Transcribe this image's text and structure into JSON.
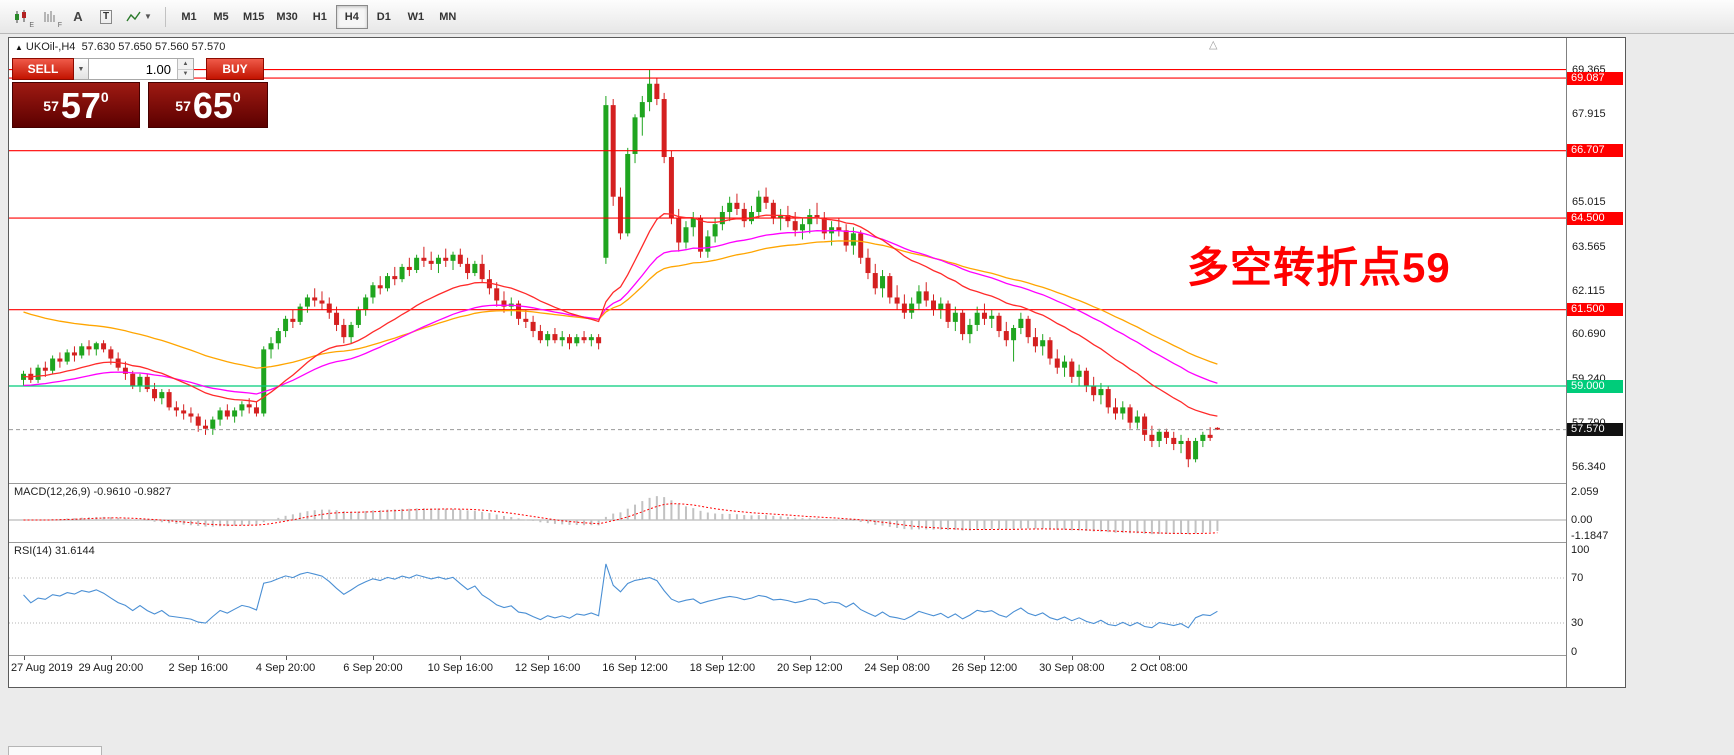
{
  "icons": {
    "dropdown_arrow": "▼",
    "spinner_up": "▲",
    "spinner_down": "▼",
    "symbol_marker": "▲",
    "scroll_marker": "△"
  },
  "toolbar": {
    "icon_a": "A",
    "icon_t": "T",
    "icon_e_sub": "E",
    "icon_f_sub": "F",
    "timeframes": [
      "M1",
      "M5",
      "M15",
      "M30",
      "H1",
      "H4",
      "D1",
      "W1",
      "MN"
    ],
    "active_timeframe": "H4"
  },
  "chart_header": {
    "symbol": "UKOil-,H4",
    "ohlc": "57.630 57.650 57.560 57.570"
  },
  "trade_panel": {
    "sell_label": "SELL",
    "buy_label": "BUY",
    "volume": "1.00",
    "sell_price": {
      "prefix": "57",
      "big": "57",
      "sup": "0"
    },
    "buy_price": {
      "prefix": "57",
      "big": "65",
      "sup": "0"
    }
  },
  "macd_panel": {
    "label": "MACD(12,26,9) -0.9610 -0.9827",
    "axis": [
      {
        "label": "2.059",
        "value": 2.059
      },
      {
        "label": "0.00",
        "value": 0
      },
      {
        "label": "-1.1847",
        "value": -1.1847
      }
    ]
  },
  "rsi_panel": {
    "label": "RSI(14) 31.6144",
    "axis": [
      {
        "label": "100",
        "value": 100
      },
      {
        "label": "70",
        "value": 70
      },
      {
        "label": "30",
        "value": 30
      },
      {
        "label": "0",
        "value": 0
      }
    ]
  },
  "chart_data": {
    "type": "candlestick",
    "symbol": "UKOil-",
    "timeframe": "H4",
    "annotation": {
      "text": "多空转折点59",
      "color": "#ff0000"
    },
    "colors": {
      "up": "#1fa51f",
      "down": "#d42020",
      "macd_hist": "#c2c2c2",
      "macd_signal": "#ff0000",
      "rsi_line": "#4a8fd4"
    },
    "y_ticks": [
      69.365,
      67.915,
      65.015,
      63.565,
      62.115,
      60.69,
      59.24,
      57.79,
      56.34
    ],
    "levels": [
      {
        "price": 69.365,
        "color": "#ff0000",
        "label": null
      },
      {
        "price": 69.087,
        "color": "#ff0000",
        "label": "69.087"
      },
      {
        "price": 66.707,
        "color": "#ff0000",
        "label": "66.707"
      },
      {
        "price": 64.5,
        "color": "#ff0000",
        "label": "64.500"
      },
      {
        "price": 61.5,
        "color": "#ff0000",
        "label": "61.500"
      },
      {
        "price": 59.0,
        "color": "#00cc7a",
        "label": "59.000"
      }
    ],
    "current_price": {
      "value": 57.57,
      "label": "57.570"
    },
    "moving_averages": [
      {
        "name": "ma-slow-orange",
        "period": 55,
        "seed": 61.5,
        "color": "#ffa500"
      },
      {
        "name": "ma-mid-magenta",
        "period": 40,
        "seed": 59.0,
        "color": "#ff00ff"
      },
      {
        "name": "ma-fast-red",
        "period": 21,
        "seed": 59.3,
        "color": "#ff2a2a"
      }
    ],
    "macd": {
      "fast": 12,
      "slow": 26,
      "signal": 9,
      "value": -0.961,
      "signal_value": -0.9827
    },
    "rsi": {
      "period": 14,
      "value": 31.6144,
      "levels": [
        70,
        30
      ]
    },
    "x_labels": [
      {
        "index": 0,
        "label": "27 Aug 2019"
      },
      {
        "index": 12,
        "label": "29 Aug 20:00"
      },
      {
        "index": 24,
        "label": "2 Sep 16:00"
      },
      {
        "index": 36,
        "label": "4 Sep 20:00"
      },
      {
        "index": 48,
        "label": "6 Sep 20:00"
      },
      {
        "index": 60,
        "label": "10 Sep 16:00"
      },
      {
        "index": 72,
        "label": "12 Sep 16:00"
      },
      {
        "index": 84,
        "label": "16 Sep 12:00"
      },
      {
        "index": 96,
        "label": "18 Sep 12:00"
      },
      {
        "index": 108,
        "label": "20 Sep 12:00"
      },
      {
        "index": 120,
        "label": "24 Sep 08:00"
      },
      {
        "index": 132,
        "label": "26 Sep 12:00"
      },
      {
        "index": 144,
        "label": "30 Sep 08:00"
      },
      {
        "index": 156,
        "label": "2 Oct 08:00"
      }
    ],
    "candles": [
      [
        59.2,
        59.5,
        59.0,
        59.4
      ],
      [
        59.4,
        59.6,
        59.1,
        59.2
      ],
      [
        59.2,
        59.7,
        59.1,
        59.6
      ],
      [
        59.6,
        59.8,
        59.3,
        59.5
      ],
      [
        59.5,
        60.0,
        59.4,
        59.9
      ],
      [
        59.9,
        60.1,
        59.6,
        59.8
      ],
      [
        59.8,
        60.2,
        59.7,
        60.1
      ],
      [
        60.1,
        60.3,
        59.8,
        60.0
      ],
      [
        60.0,
        60.4,
        59.9,
        60.3
      ],
      [
        60.3,
        60.5,
        60.0,
        60.2
      ],
      [
        60.2,
        60.45,
        60.0,
        60.4
      ],
      [
        60.4,
        60.5,
        60.1,
        60.2
      ],
      [
        60.2,
        60.3,
        59.7,
        59.9
      ],
      [
        59.9,
        60.1,
        59.5,
        59.6
      ],
      [
        59.6,
        59.8,
        59.2,
        59.4
      ],
      [
        59.4,
        59.5,
        58.9,
        59.0
      ],
      [
        59.0,
        59.4,
        58.8,
        59.3
      ],
      [
        59.3,
        59.4,
        58.8,
        58.9
      ],
      [
        58.9,
        59.1,
        58.5,
        58.6
      ],
      [
        58.6,
        58.9,
        58.4,
        58.8
      ],
      [
        58.8,
        58.9,
        58.2,
        58.3
      ],
      [
        58.3,
        58.5,
        58.0,
        58.2
      ],
      [
        58.2,
        58.4,
        57.9,
        58.1
      ],
      [
        58.1,
        58.3,
        57.8,
        58.0
      ],
      [
        58.0,
        58.1,
        57.5,
        57.7
      ],
      [
        57.7,
        57.9,
        57.4,
        57.6
      ],
      [
        57.6,
        58.0,
        57.4,
        57.9
      ],
      [
        57.9,
        58.3,
        57.7,
        58.2
      ],
      [
        58.2,
        58.4,
        57.9,
        58.0
      ],
      [
        58.0,
        58.3,
        57.8,
        58.2
      ],
      [
        58.2,
        58.5,
        58.0,
        58.4
      ],
      [
        58.4,
        58.6,
        58.1,
        58.3
      ],
      [
        58.3,
        58.5,
        58.0,
        58.1
      ],
      [
        58.1,
        60.3,
        58.0,
        60.2
      ],
      [
        60.2,
        60.6,
        59.9,
        60.4
      ],
      [
        60.4,
        60.9,
        60.2,
        60.8
      ],
      [
        60.8,
        61.3,
        60.6,
        61.2
      ],
      [
        61.2,
        61.5,
        60.9,
        61.1
      ],
      [
        61.1,
        61.7,
        61.0,
        61.6
      ],
      [
        61.6,
        62.0,
        61.4,
        61.9
      ],
      [
        61.9,
        62.2,
        61.6,
        61.8
      ],
      [
        61.8,
        62.1,
        61.5,
        61.7
      ],
      [
        61.7,
        61.9,
        61.2,
        61.4
      ],
      [
        61.4,
        61.6,
        60.8,
        61.0
      ],
      [
        61.0,
        61.2,
        60.4,
        60.6
      ],
      [
        60.6,
        61.1,
        60.4,
        61.0
      ],
      [
        61.0,
        61.6,
        60.9,
        61.5
      ],
      [
        61.5,
        62.0,
        61.3,
        61.9
      ],
      [
        61.9,
        62.4,
        61.7,
        62.3
      ],
      [
        62.3,
        62.6,
        62.0,
        62.2
      ],
      [
        62.2,
        62.7,
        62.1,
        62.6
      ],
      [
        62.6,
        62.9,
        62.3,
        62.5
      ],
      [
        62.5,
        63.0,
        62.4,
        62.9
      ],
      [
        62.9,
        63.2,
        62.6,
        62.8
      ],
      [
        62.8,
        63.3,
        62.7,
        63.2
      ],
      [
        63.2,
        63.56,
        62.9,
        63.1
      ],
      [
        63.1,
        63.4,
        62.8,
        63.0
      ],
      [
        63.0,
        63.3,
        62.7,
        63.2
      ],
      [
        63.2,
        63.5,
        62.9,
        63.1
      ],
      [
        63.1,
        63.4,
        62.8,
        63.3
      ],
      [
        63.3,
        63.5,
        62.9,
        63.0
      ],
      [
        63.0,
        63.2,
        62.5,
        62.7
      ],
      [
        62.7,
        63.1,
        62.6,
        63.0
      ],
      [
        63.0,
        63.3,
        62.4,
        62.5
      ],
      [
        62.5,
        62.8,
        62.0,
        62.2
      ],
      [
        62.2,
        62.4,
        61.6,
        61.8
      ],
      [
        61.8,
        62.1,
        61.4,
        61.6
      ],
      [
        61.6,
        61.9,
        61.3,
        61.7
      ],
      [
        61.7,
        61.8,
        61.0,
        61.2
      ],
      [
        61.2,
        61.5,
        60.9,
        61.1
      ],
      [
        61.1,
        61.3,
        60.6,
        60.8
      ],
      [
        60.8,
        61.0,
        60.4,
        60.5
      ],
      [
        60.5,
        60.8,
        60.3,
        60.7
      ],
      [
        60.7,
        60.9,
        60.4,
        60.5
      ],
      [
        60.5,
        60.8,
        60.3,
        60.6
      ],
      [
        60.6,
        60.7,
        60.2,
        60.4
      ],
      [
        60.4,
        60.7,
        60.3,
        60.6
      ],
      [
        60.6,
        60.8,
        60.4,
        60.5
      ],
      [
        60.5,
        60.7,
        60.3,
        60.6
      ],
      [
        60.6,
        60.7,
        60.2,
        60.4
      ],
      [
        63.2,
        68.5,
        63.0,
        68.2
      ],
      [
        68.2,
        68.4,
        64.9,
        65.2
      ],
      [
        65.2,
        65.5,
        63.8,
        64.0
      ],
      [
        64.0,
        66.8,
        63.9,
        66.6
      ],
      [
        66.6,
        67.9,
        66.3,
        67.8
      ],
      [
        67.8,
        68.5,
        67.2,
        68.3
      ],
      [
        68.3,
        69.365,
        68.0,
        68.9
      ],
      [
        68.9,
        69.1,
        68.2,
        68.4
      ],
      [
        68.4,
        68.6,
        66.3,
        66.5
      ],
      [
        66.5,
        66.7,
        64.3,
        64.5
      ],
      [
        64.5,
        64.8,
        63.4,
        63.7
      ],
      [
        63.7,
        64.4,
        63.5,
        64.2
      ],
      [
        64.2,
        64.7,
        63.9,
        64.5
      ],
      [
        64.5,
        64.6,
        63.2,
        63.4
      ],
      [
        63.4,
        64.1,
        63.2,
        63.9
      ],
      [
        63.9,
        64.5,
        63.7,
        64.3
      ],
      [
        64.3,
        64.9,
        64.1,
        64.7
      ],
      [
        64.7,
        65.2,
        64.4,
        65.0
      ],
      [
        65.0,
        65.3,
        64.6,
        64.8
      ],
      [
        64.8,
        65.0,
        64.2,
        64.4
      ],
      [
        64.4,
        64.9,
        64.3,
        64.7
      ],
      [
        64.7,
        65.4,
        64.5,
        65.2
      ],
      [
        65.2,
        65.5,
        64.8,
        65.0
      ],
      [
        65.0,
        65.1,
        64.3,
        64.5
      ],
      [
        64.5,
        64.8,
        64.1,
        64.6
      ],
      [
        64.6,
        64.9,
        64.2,
        64.4
      ],
      [
        64.4,
        64.7,
        63.9,
        64.1
      ],
      [
        64.1,
        64.5,
        63.8,
        64.3
      ],
      [
        64.3,
        64.8,
        64.0,
        64.6
      ],
      [
        64.6,
        65.0,
        64.3,
        64.5
      ],
      [
        64.5,
        64.7,
        63.8,
        64.0
      ],
      [
        64.0,
        64.4,
        63.6,
        64.2
      ],
      [
        64.2,
        64.5,
        63.9,
        64.1
      ],
      [
        64.1,
        64.3,
        63.4,
        63.6
      ],
      [
        63.6,
        64.2,
        63.3,
        64.0
      ],
      [
        64.0,
        64.1,
        63.0,
        63.2
      ],
      [
        63.2,
        63.5,
        62.5,
        62.7
      ],
      [
        62.7,
        63.0,
        62.0,
        62.2
      ],
      [
        62.2,
        62.8,
        61.9,
        62.6
      ],
      [
        62.6,
        62.7,
        61.7,
        61.9
      ],
      [
        61.9,
        62.3,
        61.5,
        61.7
      ],
      [
        61.7,
        62.0,
        61.2,
        61.4
      ],
      [
        61.4,
        61.9,
        61.2,
        61.7
      ],
      [
        61.7,
        62.3,
        61.5,
        62.1
      ],
      [
        62.1,
        62.4,
        61.6,
        61.8
      ],
      [
        61.8,
        62.0,
        61.3,
        61.5
      ],
      [
        61.5,
        61.9,
        61.2,
        61.7
      ],
      [
        61.7,
        61.8,
        60.9,
        61.1
      ],
      [
        61.1,
        61.6,
        60.8,
        61.4
      ],
      [
        61.4,
        61.5,
        60.5,
        60.7
      ],
      [
        60.7,
        61.2,
        60.4,
        61.0
      ],
      [
        61.0,
        61.6,
        60.8,
        61.4
      ],
      [
        61.4,
        61.7,
        61.0,
        61.2
      ],
      [
        61.2,
        61.5,
        60.9,
        61.3
      ],
      [
        61.3,
        61.4,
        60.6,
        60.8
      ],
      [
        60.8,
        61.1,
        60.3,
        60.5
      ],
      [
        60.5,
        61.0,
        59.8,
        60.9
      ],
      [
        60.9,
        61.4,
        60.7,
        61.2
      ],
      [
        61.2,
        61.3,
        60.4,
        60.6
      ],
      [
        60.6,
        60.9,
        60.1,
        60.3
      ],
      [
        60.3,
        60.7,
        60.0,
        60.5
      ],
      [
        60.5,
        60.6,
        59.7,
        59.9
      ],
      [
        59.9,
        60.2,
        59.4,
        59.6
      ],
      [
        59.6,
        60.0,
        59.3,
        59.8
      ],
      [
        59.8,
        59.9,
        59.1,
        59.3
      ],
      [
        59.3,
        59.7,
        59.0,
        59.5
      ],
      [
        59.5,
        59.6,
        58.8,
        59.0
      ],
      [
        59.0,
        59.3,
        58.5,
        58.7
      ],
      [
        58.7,
        59.1,
        58.4,
        58.9
      ],
      [
        58.9,
        59.0,
        58.1,
        58.3
      ],
      [
        58.3,
        58.6,
        57.9,
        58.1
      ],
      [
        58.1,
        58.5,
        57.9,
        58.3
      ],
      [
        58.3,
        58.4,
        57.6,
        57.8
      ],
      [
        57.8,
        58.2,
        57.6,
        58.0
      ],
      [
        58.0,
        58.1,
        57.2,
        57.4
      ],
      [
        57.4,
        57.7,
        57.0,
        57.2
      ],
      [
        57.2,
        57.6,
        57.0,
        57.5
      ],
      [
        57.5,
        57.6,
        57.1,
        57.3
      ],
      [
        57.3,
        57.5,
        56.9,
        57.1
      ],
      [
        57.1,
        57.4,
        56.8,
        57.2
      ],
      [
        57.2,
        57.3,
        56.34,
        56.6
      ],
      [
        56.6,
        57.3,
        56.5,
        57.2
      ],
      [
        57.2,
        57.5,
        57.0,
        57.4
      ],
      [
        57.4,
        57.65,
        57.2,
        57.3
      ],
      [
        57.63,
        57.65,
        57.56,
        57.57
      ]
    ]
  }
}
